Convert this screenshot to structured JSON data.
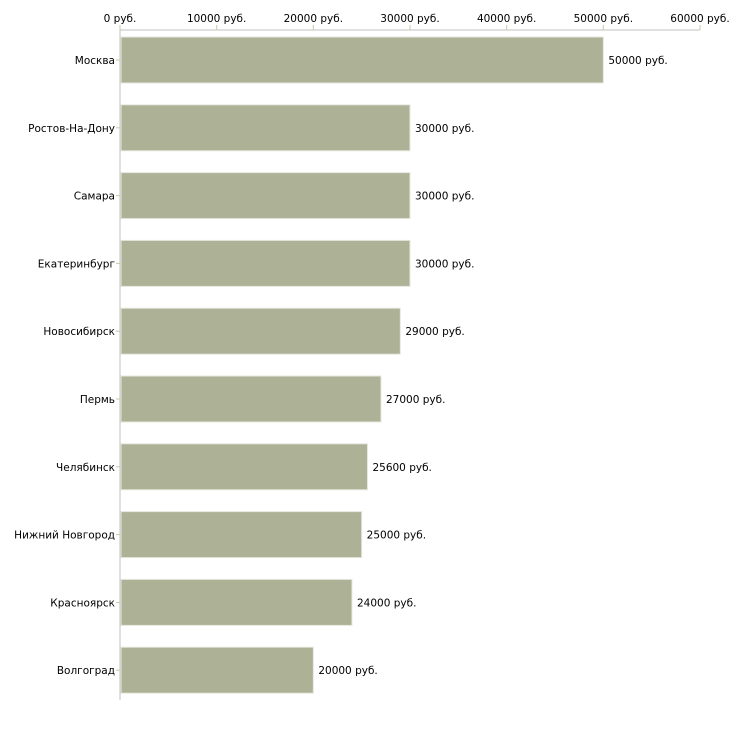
{
  "chart_data": {
    "type": "bar",
    "orientation": "horizontal",
    "title": "",
    "xlabel": "",
    "ylabel": "",
    "unit_suffix": " руб.",
    "xlim": [
      0,
      60000
    ],
    "x_ticks": [
      0,
      10000,
      20000,
      30000,
      40000,
      50000,
      60000
    ],
    "x_tick_labels": [
      "0 руб.",
      "10000 руб.",
      "20000 руб.",
      "30000 руб.",
      "40000 руб.",
      "50000 руб.",
      "60000 руб."
    ],
    "x_axis_position": "top",
    "grid": false,
    "categories": [
      "Москва",
      "Ростов-На-Дону",
      "Самара",
      "Екатеринбург",
      "Новосибирск",
      "Пермь",
      "Челябинск",
      "Нижний Новгород",
      "Красноярск",
      "Волгоград"
    ],
    "values": [
      50000,
      30000,
      30000,
      30000,
      29000,
      27000,
      25600,
      25000,
      24000,
      20000
    ],
    "data_labels": [
      "50000 руб.",
      "30000 руб.",
      "30000 руб.",
      "30000 руб.",
      "29000 руб.",
      "27000 руб.",
      "25600 руб.",
      "25000 руб.",
      "24000 руб.",
      "20000 руб."
    ],
    "colors": {
      "bar": "#adb297",
      "axis": "#c0c0c0",
      "tick": "#c8c8a8"
    }
  }
}
